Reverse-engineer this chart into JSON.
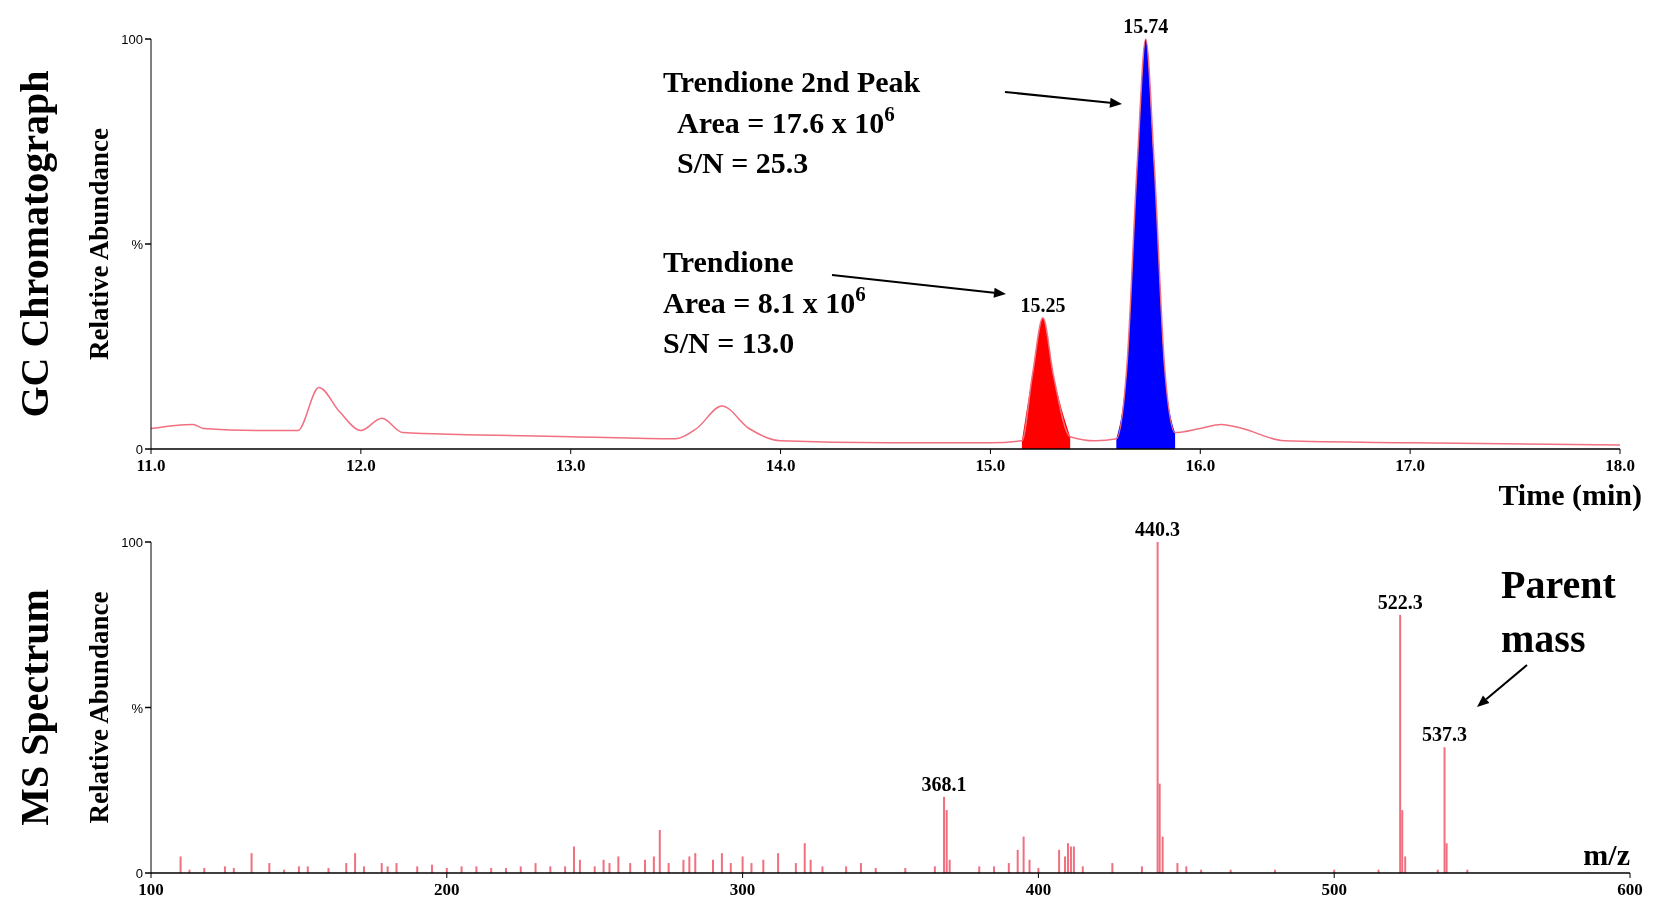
{
  "chart_data": [
    {
      "type": "line",
      "title": "GC Chromatograph",
      "ylabel": "Relative Abundance",
      "xlabel": "Time (min)",
      "xlim": [
        11.0,
        18.0
      ],
      "xticks": [
        {
          "value": 11,
          "label": "11.0"
        },
        {
          "value": 12,
          "label": "12.0"
        },
        {
          "value": 13,
          "label": "13.0"
        },
        {
          "value": 14,
          "label": "14.0"
        },
        {
          "value": 15,
          "label": "15.0"
        },
        {
          "value": 16,
          "label": "16.0"
        },
        {
          "value": 17,
          "label": "17.0"
        },
        {
          "value": 18,
          "label": "18.0"
        }
      ],
      "ylim": [
        0,
        100
      ],
      "yticks": [
        {
          "value": 0,
          "label": "0"
        },
        {
          "value": 50,
          "label": "%"
        },
        {
          "value": 100,
          "label": "100"
        }
      ],
      "grid": false,
      "series": [
        {
          "type": "area",
          "color": "#ff0000",
          "x": [
            15.15,
            15.2,
            15.25,
            15.3,
            15.38
          ],
          "values": [
            2,
            18,
            32,
            18,
            3
          ]
        },
        {
          "type": "area",
          "color": "#0000ff",
          "x": [
            15.6,
            15.65,
            15.7,
            15.74,
            15.78,
            15.83,
            15.88
          ],
          "values": [
            2.5,
            20,
            70,
            100,
            70,
            20,
            4
          ]
        },
        {
          "color": "#f07080",
          "x": [
            11.0,
            11.2,
            11.25,
            11.5,
            11.7,
            11.8,
            11.9,
            12.0,
            12.1,
            12.2,
            12.5,
            13.0,
            13.5,
            13.6,
            13.72,
            13.85,
            14.0,
            14.5,
            15.0,
            15.15,
            15.2,
            15.25,
            15.3,
            15.38,
            15.5,
            15.6,
            15.65,
            15.7,
            15.74,
            15.78,
            15.83,
            15.88,
            16.0,
            16.1,
            16.2,
            16.4,
            17.0,
            18.0
          ],
          "values": [
            5,
            6,
            5,
            4.5,
            4.5,
            15,
            9,
            4.5,
            7.5,
            4,
            3.5,
            3,
            2.5,
            5,
            10.5,
            5,
            2,
            1.5,
            1.5,
            2,
            18,
            32,
            18,
            3,
            2,
            2.5,
            20,
            70,
            100,
            70,
            20,
            4,
            5,
            6,
            5,
            2,
            1.5,
            1
          ]
        }
      ],
      "annotations": [
        {
          "text": "15.74",
          "x": 15.74,
          "y": 100
        },
        {
          "text": "15.25",
          "x": 15.25,
          "y": 32
        },
        "Trendione 2nd Peak\nArea = 17.6 x 10$^{6}$\nS/N = 25.3",
        "Trendione\nArea = 8.1 x 10$^{6}$\nS/N = 13.0"
      ]
    },
    {
      "type": "bar",
      "title": "MS Spectrum",
      "ylabel": "Relative Abundance",
      "xlabel": "m/z",
      "color": "#f07080",
      "xlim": [
        100,
        600
      ],
      "xticks": [
        100,
        200,
        300,
        400,
        500,
        600
      ],
      "ylim": [
        0,
        100
      ],
      "yticks": [
        {
          "value": 0,
          "label": "0"
        },
        {
          "value": 50,
          "label": "%"
        },
        {
          "value": 100,
          "label": "100"
        }
      ],
      "grid": false,
      "x": [
        110,
        113,
        118,
        125,
        128,
        134,
        140,
        145,
        150,
        153,
        160,
        166,
        169,
        172,
        178,
        180,
        183,
        190,
        195,
        200,
        205,
        210,
        215,
        220,
        225,
        230,
        235,
        240,
        243,
        245,
        250,
        253,
        255,
        258,
        262,
        267,
        270,
        272,
        275,
        280,
        282,
        284,
        290,
        293,
        296,
        300,
        303,
        307,
        312,
        318,
        321,
        323,
        327,
        335,
        340,
        345,
        355,
        365,
        368.1,
        369,
        370,
        380,
        385,
        390,
        393,
        395,
        397,
        400,
        407,
        409,
        410,
        411,
        412,
        415,
        425,
        435,
        440.3,
        441,
        442,
        447,
        450,
        455,
        465,
        480,
        500,
        515,
        522.3,
        523,
        524,
        535,
        537.3,
        538,
        545
      ],
      "values": [
        5,
        1,
        1.5,
        2,
        1.5,
        6,
        3,
        1,
        2,
        2,
        1.5,
        3,
        6,
        2,
        3,
        2,
        3,
        2,
        2.5,
        1.5,
        2,
        2,
        1.5,
        1.5,
        2,
        3,
        2,
        2,
        8,
        4,
        2,
        4,
        3,
        5,
        3,
        4,
        5,
        13,
        3,
        4,
        5,
        6,
        4,
        6,
        3,
        5,
        3,
        4,
        6,
        3,
        9,
        4,
        2,
        2,
        3,
        1.5,
        1.5,
        2,
        23,
        19,
        4,
        2,
        2,
        3,
        7,
        11,
        4,
        1.5,
        7,
        5,
        9,
        8,
        8,
        2,
        3,
        2,
        100,
        27,
        11,
        3,
        2,
        1,
        1,
        1,
        1,
        1,
        78,
        19,
        5,
        1,
        38,
        9,
        1
      ],
      "annotations": [
        {
          "text": "368.1",
          "x": 368.1,
          "y": 23
        },
        {
          "text": "440.3",
          "x": 440.3,
          "y": 100
        },
        {
          "text": "522.3",
          "x": 522.3,
          "y": 78
        },
        {
          "text": "537.3",
          "x": 537.3,
          "y": 38
        },
        "Parent\nmass"
      ]
    }
  ]
}
